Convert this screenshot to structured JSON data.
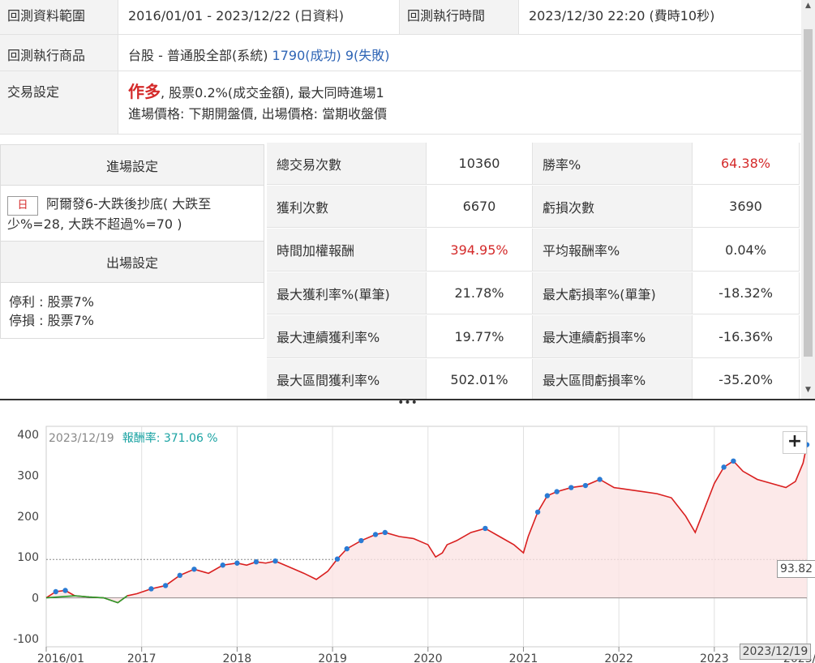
{
  "summary": {
    "range_label": "回測資料範圍",
    "range_value": "2016/01/01 - 2023/12/22 (日資料)",
    "exec_time_label": "回測執行時間",
    "exec_time_value": "2023/12/30 22:20 (費時10秒)",
    "product_label": "回測執行商品",
    "product_value": "台股 - 普通股全部(系統)",
    "success_text": "1790(成功)",
    "fail_text": "9(失敗)",
    "trade_label": "交易設定",
    "trade_direction": "作多",
    "trade_fee": ", 股票0.2%(成交金額), 最大同時進場1",
    "trade_prices": "進場價格: 下期開盤價, 出場價格: 當期收盤價"
  },
  "entry": {
    "header": "進場設定",
    "tag": "日",
    "condition": "阿爾發6-大跌後抄底( 大跌至少%=28, 大跌不超過%=70 )"
  },
  "exit": {
    "header": "出場設定",
    "take_profit": "停利 : 股票7%",
    "stop_loss": "停損 : 股票7%"
  },
  "stats": [
    {
      "l1": "總交易次數",
      "v1": "10360",
      "l2": "勝率%",
      "v2": "64.38%",
      "c1": "",
      "c2": "red"
    },
    {
      "l1": "獲利次數",
      "v1": "6670",
      "l2": "虧損次數",
      "v2": "3690",
      "c1": "",
      "c2": ""
    },
    {
      "l1": "時間加權報酬",
      "v1": "394.95%",
      "l2": "平均報酬率%",
      "v2": "0.04%",
      "c1": "red",
      "c2": ""
    },
    {
      "l1": "最大獲利率%(單筆)",
      "v1": "21.78%",
      "l2": "最大虧損率%(單筆)",
      "v2": "-18.32%",
      "c1": "",
      "c2": ""
    },
    {
      "l1": "最大連續獲利率%",
      "v1": "19.77%",
      "l2": "最大連續虧損率%",
      "v2": "-16.36%",
      "c1": "",
      "c2": ""
    },
    {
      "l1": "最大區間獲利率%",
      "v1": "502.01%",
      "l2": "最大區間虧損率%",
      "v2": "-35.20%",
      "c1": "",
      "c2": ""
    }
  ],
  "chart_header": {
    "date": "2023/12/19",
    "return_text": "報酬率: 371.06 %"
  },
  "chart_data": {
    "type": "line",
    "title": "",
    "xlabel": "",
    "ylabel": "",
    "x_ticks": [
      "2016/01",
      "2017",
      "2018",
      "2019",
      "2020",
      "2021",
      "2022",
      "2023",
      "2023/12"
    ],
    "y_ticks": [
      400,
      300,
      200,
      100,
      0,
      -100
    ],
    "ylim": [
      -120,
      420
    ],
    "xlim": [
      2016.0,
      2023.97
    ],
    "reference_line": 93.82,
    "reference_label": "93.82",
    "last_date_label": "2023/12/19",
    "series": [
      {
        "x": [
          2016.0,
          2016.1,
          2016.2,
          2016.3,
          2016.45,
          2016.6,
          2016.75,
          2016.85,
          2016.95,
          2017.1,
          2017.25,
          2017.4,
          2017.55,
          2017.7,
          2017.85,
          2018.0,
          2018.1,
          2018.2,
          2018.3,
          2018.4,
          2018.55,
          2018.7,
          2018.83,
          2018.95,
          2019.05,
          2019.15,
          2019.3,
          2019.45,
          2019.55,
          2019.7,
          2019.85,
          2020.0,
          2020.08,
          2020.15,
          2020.2,
          2020.3,
          2020.45,
          2020.6,
          2020.75,
          2020.9,
          2021.0,
          2021.05,
          2021.15,
          2021.25,
          2021.35,
          2021.5,
          2021.65,
          2021.8,
          2021.95,
          2022.1,
          2022.25,
          2022.4,
          2022.55,
          2022.7,
          2022.8,
          2022.9,
          2023.0,
          2023.1,
          2023.2,
          2023.3,
          2023.45,
          2023.6,
          2023.75,
          2023.85,
          2023.93,
          2023.97
        ],
        "y": [
          0,
          15,
          18,
          5,
          2,
          0,
          -12,
          5,
          10,
          22,
          30,
          55,
          70,
          60,
          80,
          85,
          80,
          88,
          85,
          90,
          75,
          60,
          45,
          65,
          95,
          120,
          140,
          155,
          160,
          150,
          145,
          130,
          100,
          110,
          130,
          140,
          160,
          170,
          150,
          130,
          110,
          150,
          210,
          250,
          260,
          270,
          275,
          290,
          270,
          265,
          260,
          255,
          245,
          200,
          160,
          220,
          280,
          320,
          335,
          310,
          290,
          280,
          270,
          285,
          330,
          375
        ],
        "name": ""
      }
    ]
  }
}
